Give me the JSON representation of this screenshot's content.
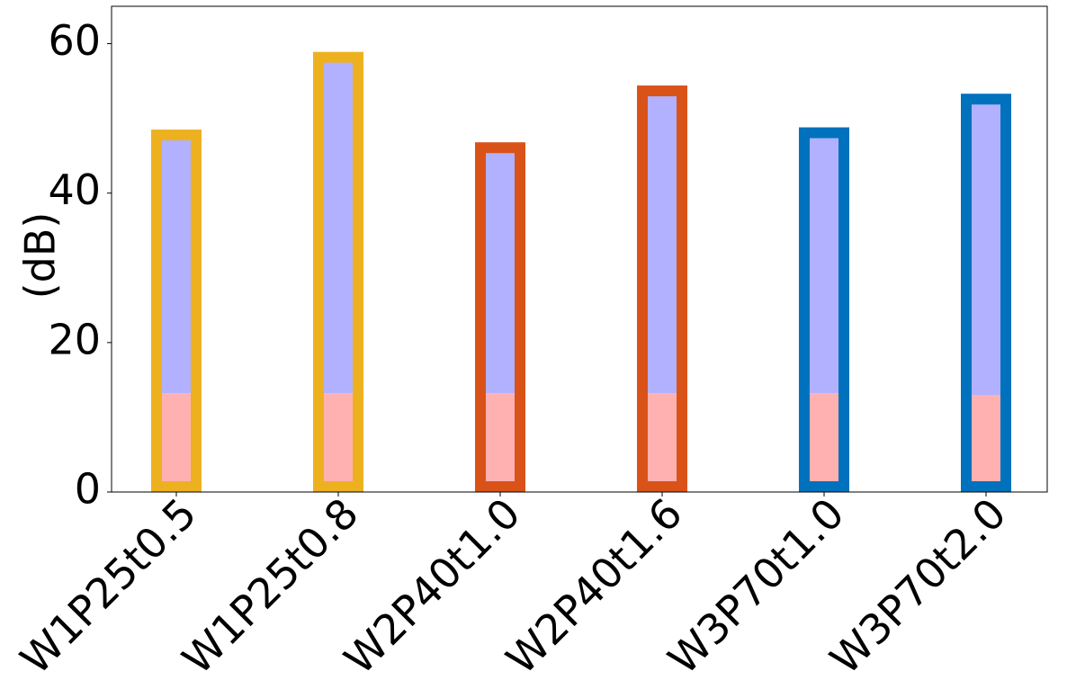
{
  "chart_data": {
    "type": "bar",
    "title": "",
    "xlabel": "",
    "ylabel": "(dB)",
    "ylim": [
      0,
      65
    ],
    "yticks": [
      0,
      20,
      40,
      60
    ],
    "grid": false,
    "categories": [
      "W1P25t0.5",
      "W1P25t0.8",
      "W2P40t1.0",
      "W2P40t1.6",
      "W3P70t1.0",
      "W3P70t2.0"
    ],
    "series": [
      {
        "values": [
          13.2,
          13.2,
          13.2,
          13.2,
          13.2,
          13.0
        ],
        "color": "#ffb1b1"
      },
      {
        "values": [
          47.3,
          57.7,
          45.6,
          53.2,
          47.6,
          52.1
        ],
        "color": "#b1b1ff"
      },
      {
        "values": [
          48.5,
          58.9,
          46.8,
          54.4,
          48.8,
          53.3
        ],
        "edge_colors": [
          "#edb120",
          "#edb120",
          "#d95319",
          "#d95319",
          "#0072bd",
          "#0072bd"
        ]
      }
    ]
  }
}
